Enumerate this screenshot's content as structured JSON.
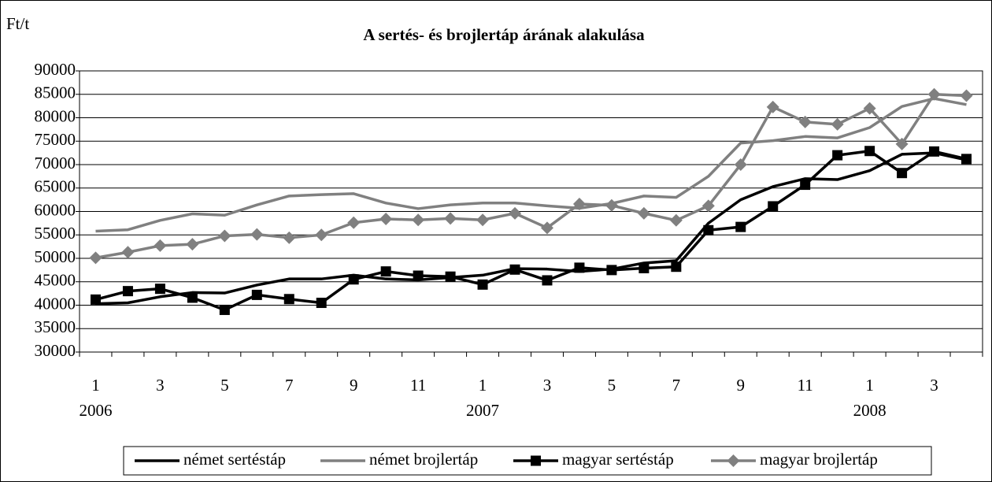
{
  "chart_data": {
    "type": "line",
    "title": "A sertés- és brojlertáp árának alakulása",
    "y_label": "Ft/t",
    "categories": [
      "1",
      null,
      "3",
      null,
      "5",
      null,
      "7",
      null,
      "9",
      null,
      "11",
      null,
      "1",
      null,
      "3",
      null,
      "5",
      null,
      "7",
      null,
      "9",
      null,
      "11",
      null,
      "1",
      null,
      "3",
      null
    ],
    "year_labels": [
      "2006",
      "2007",
      "2008"
    ],
    "ylim": [
      30000,
      90000
    ],
    "yticks": [
      30000,
      35000,
      40000,
      45000,
      50000,
      55000,
      60000,
      65000,
      70000,
      75000,
      80000,
      85000,
      90000
    ],
    "grid": true,
    "legend": "bottom",
    "series": [
      {
        "name": "német sertéstáp",
        "color": "#000000",
        "values": [
          40300,
          40500,
          41800,
          42700,
          42600,
          44300,
          45600,
          45600,
          46400,
          45600,
          45400,
          45900,
          46400,
          47800,
          47700,
          47200,
          47700,
          49000,
          49500,
          57500,
          62500,
          65300,
          67000,
          66800,
          68700,
          72200,
          72500,
          71000
        ]
      },
      {
        "name": "német brojlertáp",
        "color": "#808080",
        "values": [
          55800,
          56100,
          58100,
          59500,
          59200,
          61400,
          63300,
          63600,
          63800,
          61800,
          60600,
          61400,
          61800,
          61800,
          61200,
          60700,
          61700,
          63300,
          63000,
          67500,
          74600,
          75100,
          76000,
          75700,
          77900,
          82400,
          84100,
          82800
        ]
      },
      {
        "name": "magyar sertéstáp",
        "color": "#000000",
        "marker": "square",
        "values": [
          41200,
          43000,
          43500,
          41600,
          39000,
          42200,
          41300,
          40500,
          45500,
          47200,
          46300,
          46100,
          44400,
          47600,
          45300,
          48000,
          47500,
          47900,
          48200,
          56000,
          56700,
          61100,
          65700,
          72000,
          72900,
          68200,
          72800,
          71200
        ]
      },
      {
        "name": "magyar brojlertáp",
        "color": "#808080",
        "marker": "diamond",
        "values": [
          50100,
          51300,
          52700,
          53000,
          54800,
          55100,
          54400,
          55000,
          57600,
          58400,
          58200,
          58500,
          58200,
          59600,
          56500,
          61600,
          61300,
          59600,
          58100,
          61200,
          70000,
          82300,
          79100,
          78600,
          82000,
          74400,
          85000,
          84700
        ]
      }
    ]
  }
}
